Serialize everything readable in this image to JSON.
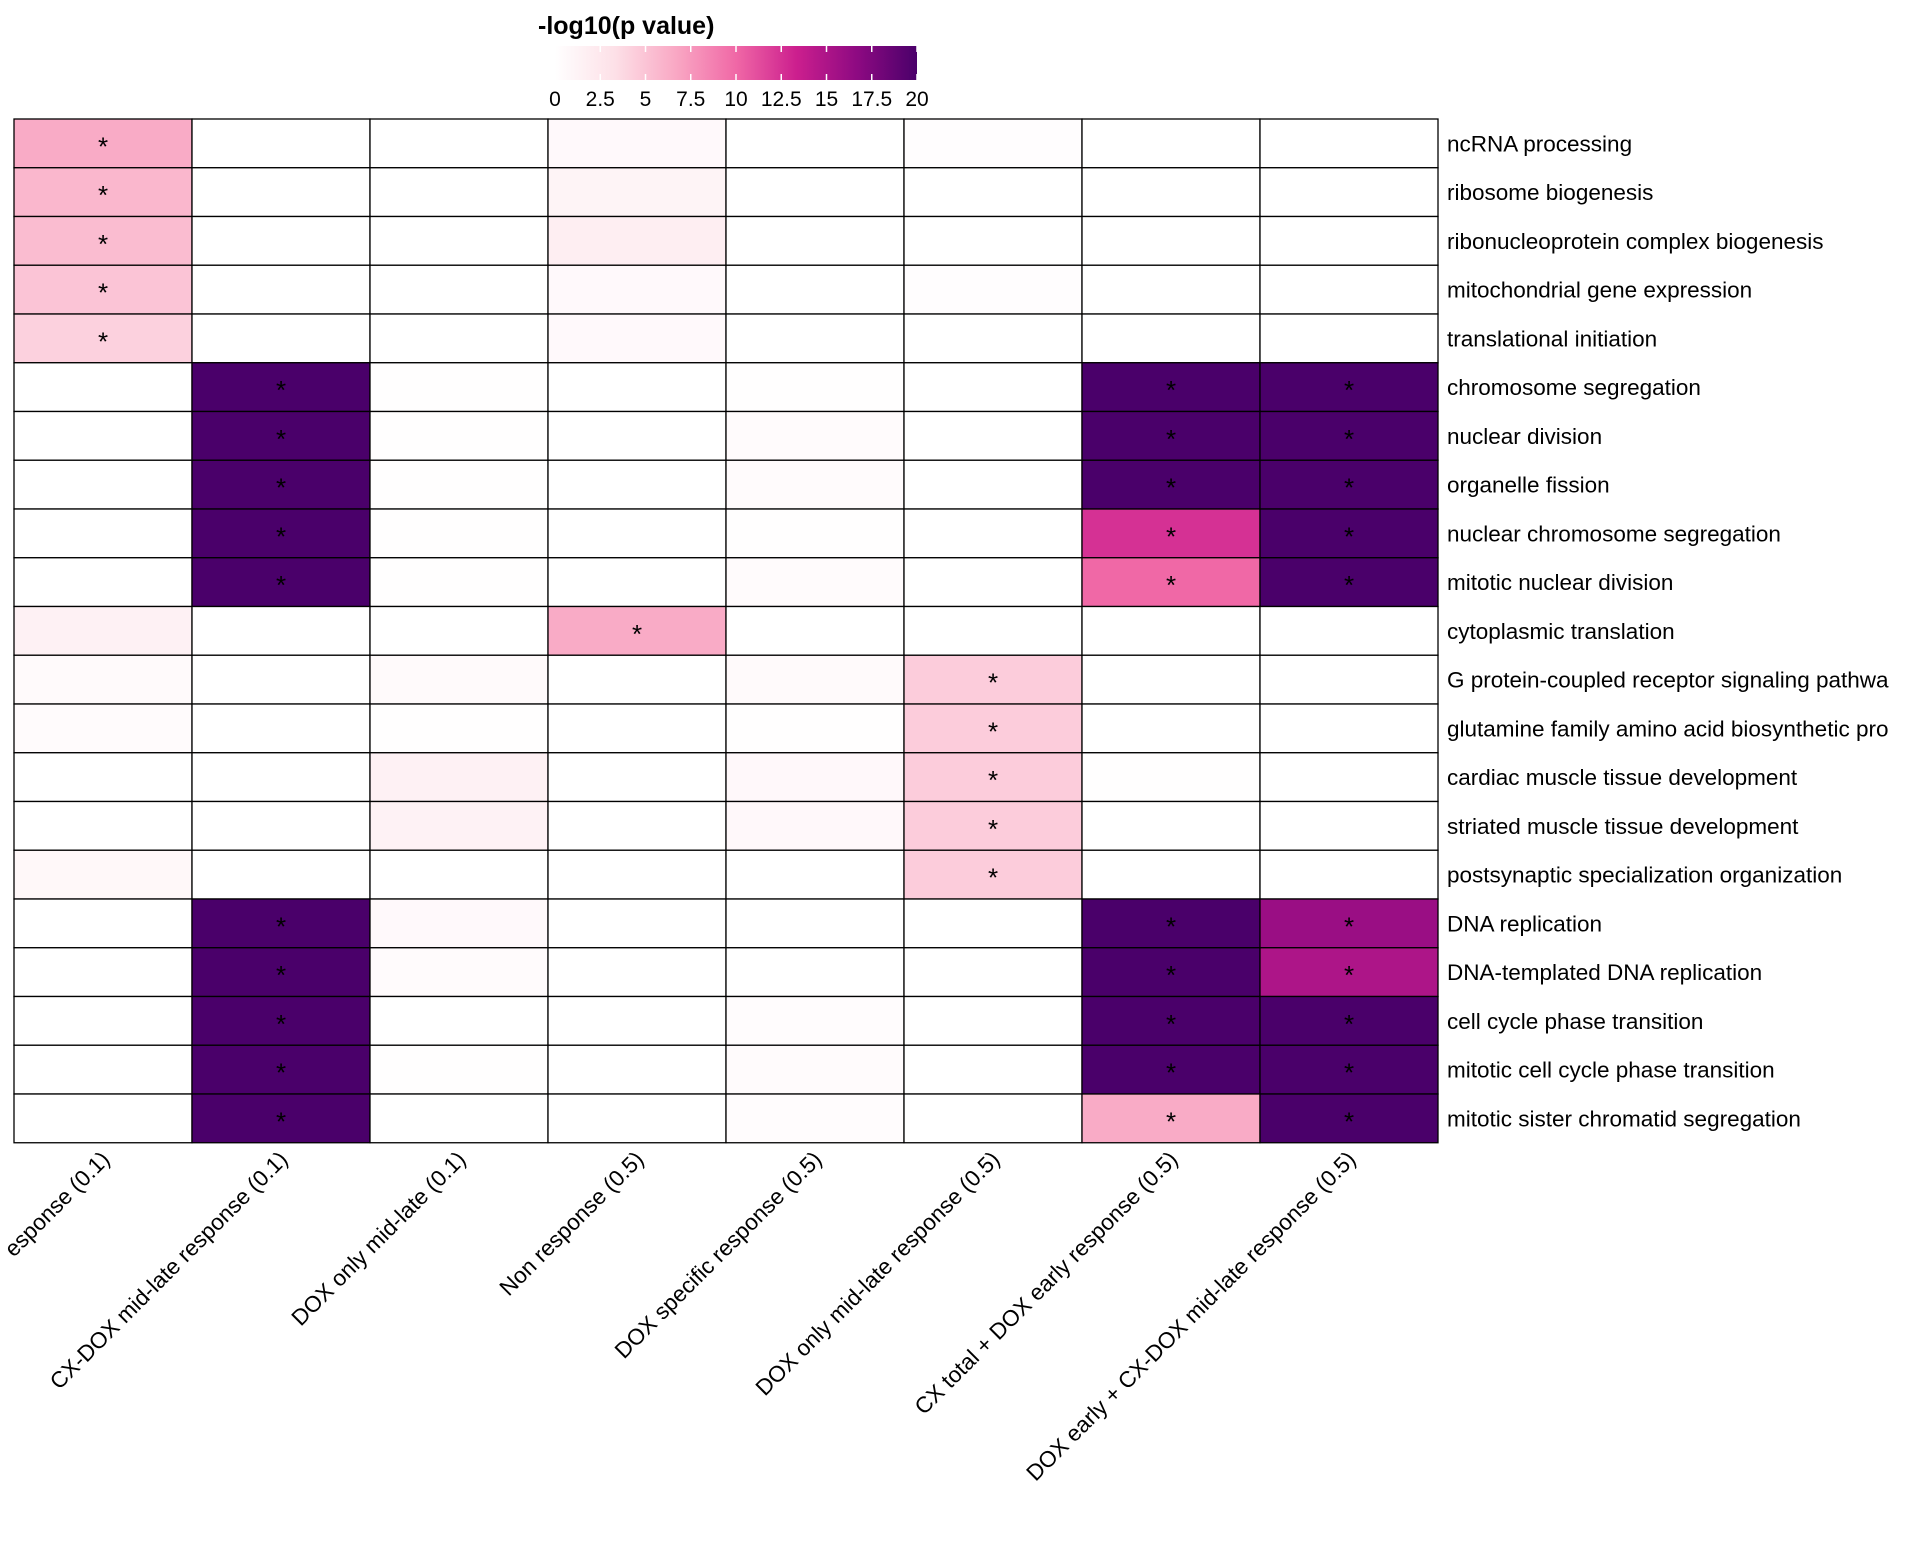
{
  "chart_data": {
    "type": "heatmap",
    "title": "-log10(p value)",
    "colorbar": {
      "ticks": [
        "0",
        "2.5",
        "5",
        "7.5",
        "10",
        "12.5",
        "15",
        "17.5",
        "20"
      ],
      "tick_values": [
        0,
        2.5,
        5,
        7.5,
        10,
        12.5,
        15,
        17.5,
        20
      ],
      "range": [
        0,
        20
      ],
      "colors": [
        "#ffffff",
        "#fde0e7",
        "#f9a8c4",
        "#f068a6",
        "#cc1f8e",
        "#8e0a82",
        "#4a006a"
      ]
    },
    "columns": [
      "esponse (0.1)",
      "CX-DOX mid-late response (0.1)",
      "DOX only mid-late (0.1)",
      "Non response (0.5)",
      "DOX specific response (0.5)",
      "DOX only mid-late response (0.5)",
      "CX total + DOX early response (0.5)",
      "DOX early + CX-DOX mid-late response (0.5)"
    ],
    "rows": [
      "ncRNA processing",
      "ribosome biogenesis",
      "ribonucleoprotein complex biogenesis",
      "mitochondrial gene expression",
      "translational initiation",
      "chromosome segregation",
      "nuclear division",
      "organelle fission",
      "nuclear chromosome segregation",
      "mitotic nuclear division",
      "cytoplasmic translation",
      "G protein-coupled receptor signaling pathwa",
      "glutamine family amino acid biosynthetic pro",
      "cardiac muscle tissue development",
      "striated muscle tissue development",
      "postsynaptic specialization organization",
      "DNA replication",
      "DNA-templated DNA replication",
      "cell cycle phase transition",
      "mitotic cell cycle phase transition",
      "mitotic sister chromatid segregation"
    ],
    "values": [
      [
        6.5,
        0,
        0,
        0.6,
        0,
        0.2,
        0,
        0
      ],
      [
        5.8,
        0,
        0,
        1.2,
        0,
        0,
        0,
        0
      ],
      [
        5.5,
        0,
        0,
        1.8,
        0,
        0,
        0,
        0
      ],
      [
        5.0,
        0,
        0,
        0.6,
        0,
        0.2,
        0,
        0
      ],
      [
        4.2,
        0,
        0,
        0.6,
        0,
        0,
        0,
        0
      ],
      [
        0,
        20,
        0.1,
        0,
        0.1,
        0,
        20,
        20
      ],
      [
        0,
        20,
        0.1,
        0,
        0.4,
        0,
        20,
        20
      ],
      [
        0,
        20,
        0.1,
        0,
        0.4,
        0,
        20,
        20
      ],
      [
        0,
        20,
        0.1,
        0,
        0.1,
        0,
        12.5,
        20
      ],
      [
        0,
        20,
        0.1,
        0,
        0.4,
        0,
        10,
        20
      ],
      [
        1.5,
        0,
        0,
        6.5,
        0,
        0,
        0,
        0
      ],
      [
        0.5,
        0,
        0.5,
        0,
        0.5,
        4.5,
        0,
        0
      ],
      [
        0.4,
        0,
        0.1,
        0,
        0.1,
        4.5,
        0,
        0
      ],
      [
        0,
        0,
        1.5,
        0,
        0.7,
        4.5,
        0.1,
        0
      ],
      [
        0,
        0,
        1.4,
        0,
        0.7,
        4.5,
        0,
        0
      ],
      [
        0.8,
        0,
        0,
        0,
        0,
        4.5,
        0,
        0
      ],
      [
        0,
        20,
        0.6,
        0,
        0,
        0,
        20,
        16
      ],
      [
        0,
        20,
        0.4,
        0,
        0,
        0,
        20,
        15
      ],
      [
        0,
        20,
        0,
        0,
        0.3,
        0,
        20,
        20
      ],
      [
        0,
        20,
        0.1,
        0,
        0.4,
        0,
        20,
        20
      ],
      [
        0,
        20,
        0,
        0,
        0.3,
        0,
        6.5,
        20
      ]
    ],
    "significant": [
      [
        1,
        0,
        0,
        0,
        0,
        0,
        0,
        0
      ],
      [
        1,
        0,
        0,
        0,
        0,
        0,
        0,
        0
      ],
      [
        1,
        0,
        0,
        0,
        0,
        0,
        0,
        0
      ],
      [
        1,
        0,
        0,
        0,
        0,
        0,
        0,
        0
      ],
      [
        1,
        0,
        0,
        0,
        0,
        0,
        0,
        0
      ],
      [
        0,
        1,
        0,
        0,
        0,
        0,
        1,
        1
      ],
      [
        0,
        1,
        0,
        0,
        0,
        0,
        1,
        1
      ],
      [
        0,
        1,
        0,
        0,
        0,
        0,
        1,
        1
      ],
      [
        0,
        1,
        0,
        0,
        0,
        0,
        1,
        1
      ],
      [
        0,
        1,
        0,
        0,
        0,
        0,
        1,
        1
      ],
      [
        0,
        0,
        0,
        1,
        0,
        0,
        0,
        0
      ],
      [
        0,
        0,
        0,
        0,
        0,
        1,
        0,
        0
      ],
      [
        0,
        0,
        0,
        0,
        0,
        1,
        0,
        0
      ],
      [
        0,
        0,
        0,
        0,
        0,
        1,
        0,
        0
      ],
      [
        0,
        0,
        0,
        0,
        0,
        1,
        0,
        0
      ],
      [
        0,
        0,
        0,
        0,
        0,
        1,
        0,
        0
      ],
      [
        0,
        1,
        0,
        0,
        0,
        0,
        1,
        1
      ],
      [
        0,
        1,
        0,
        0,
        0,
        0,
        1,
        1
      ],
      [
        0,
        1,
        0,
        0,
        0,
        0,
        1,
        1
      ],
      [
        0,
        1,
        0,
        0,
        0,
        0,
        1,
        1
      ],
      [
        0,
        1,
        0,
        0,
        0,
        0,
        1,
        1
      ]
    ],
    "significance_marker": "*"
  }
}
